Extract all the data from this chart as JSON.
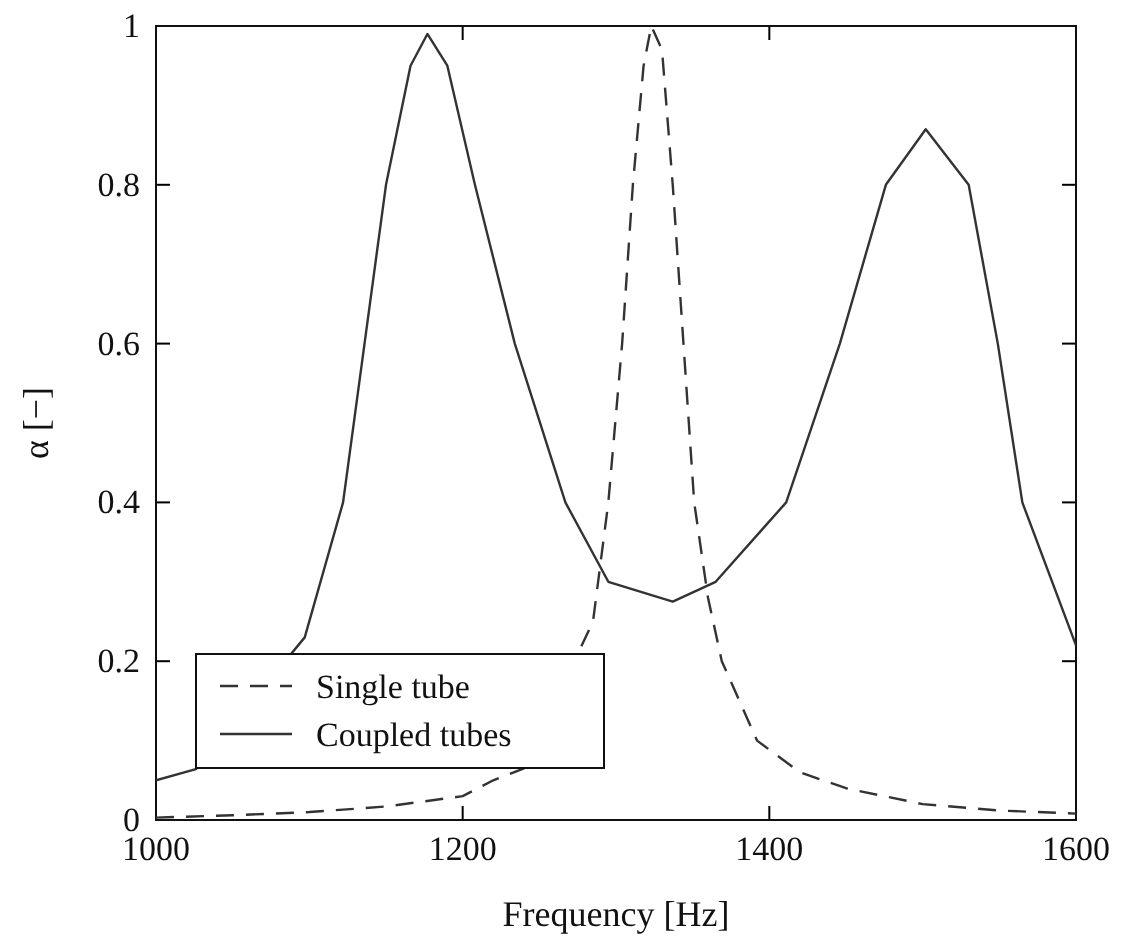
{
  "chart_data": {
    "type": "line",
    "xlabel": "Frequency [Hz]",
    "ylabel": "α [−]",
    "xlim": [
      1000,
      1600
    ],
    "xticks": [
      1000,
      1200,
      1400,
      1600
    ],
    "ylim": [
      0,
      1
    ],
    "yticks": [
      0,
      0.2,
      0.4,
      0.6,
      0.8,
      1
    ],
    "grid": false,
    "legend": "bottom left",
    "marker": "none",
    "series": [
      {
        "name": "Single tube",
        "color": "#333333",
        "line_style": "dashed",
        "x": [
          1000,
          1050,
          1100,
          1150,
          1200,
          1220,
          1240,
          1285,
          1295,
          1304,
          1311,
          1318,
          1323,
          1330,
          1337,
          1344,
          1351,
          1360,
          1369,
          1392,
          1420,
          1450,
          1500,
          1550,
          1600
        ],
        "values": [
          0.003,
          0.006,
          0.01,
          0.017,
          0.03,
          0.05,
          0.065,
          0.25,
          0.4,
          0.6,
          0.8,
          0.95,
          1.0,
          0.97,
          0.8,
          0.6,
          0.4,
          0.28,
          0.2,
          0.1,
          0.06,
          0.04,
          0.02,
          0.012,
          0.008
        ]
      },
      {
        "name": "Coupled tubes",
        "color": "#333333",
        "line_style": "solid",
        "x": [
          1000,
          1026,
          1097,
          1122,
          1136,
          1150,
          1166,
          1177,
          1190,
          1208,
          1234,
          1267,
          1295,
          1337,
          1365,
          1411,
          1446,
          1476,
          1502,
          1530,
          1549,
          1565,
          1600
        ],
        "values": [
          0.05,
          0.064,
          0.23,
          0.4,
          0.6,
          0.8,
          0.95,
          0.99,
          0.95,
          0.8,
          0.6,
          0.4,
          0.3,
          0.275,
          0.3,
          0.4,
          0.6,
          0.8,
          0.87,
          0.8,
          0.6,
          0.4,
          0.22
        ]
      }
    ]
  }
}
